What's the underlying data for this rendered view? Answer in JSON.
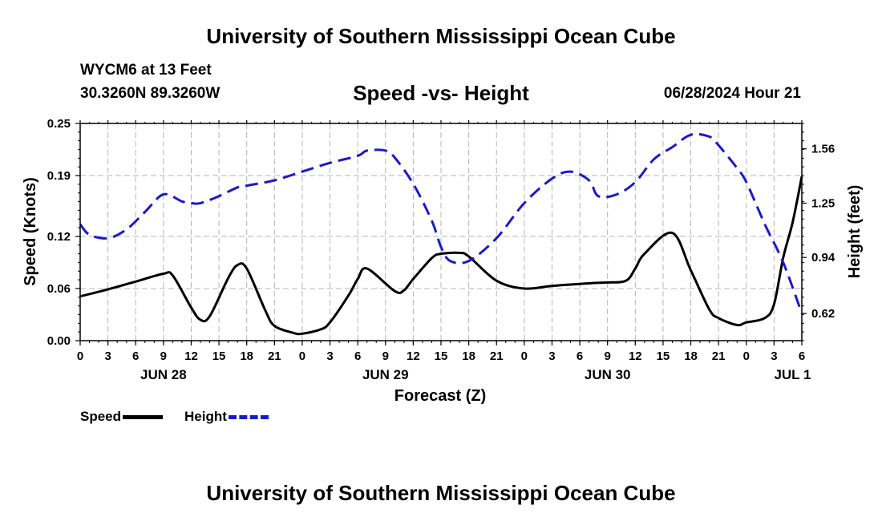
{
  "header": {
    "title": "University of Southern Mississippi Ocean Cube",
    "station": "WYCM6 at 13 Feet",
    "coords": "30.3260N  89.3260W",
    "subtitle": "Speed -vs- Height",
    "datetime": "06/28/2024 Hour 21",
    "footer_title": "University of Southern Mississippi Ocean Cube"
  },
  "legend": {
    "speed_label": "Speed",
    "height_label": "Height"
  },
  "colors": {
    "speed": "#000000",
    "height": "#1a1acc",
    "grid": "#b4b4b4"
  },
  "chart_data": {
    "type": "line",
    "title": "Speed -vs- Height",
    "xlabel": "Forecast (Z)",
    "ylabel": "Speed (Knots)",
    "y2label": "Height (feet)",
    "x_hours_range": [
      0,
      78
    ],
    "x_tick_labels": [
      "0",
      "3",
      "6",
      "9",
      "12",
      "15",
      "18",
      "21",
      "0",
      "3",
      "6",
      "9",
      "12",
      "15",
      "18",
      "21",
      "0",
      "3",
      "6",
      "9",
      "12",
      "15",
      "18",
      "21",
      "0",
      "3",
      "6"
    ],
    "x_date_labels": [
      {
        "hour": 9,
        "label": "JUN 28"
      },
      {
        "hour": 33,
        "label": "JUN 29"
      },
      {
        "hour": 57,
        "label": "JUN 30"
      },
      {
        "hour": 77,
        "label": "JUL 1"
      }
    ],
    "ylim": [
      0,
      0.25
    ],
    "y_ticks": [
      0.0,
      0.06,
      0.12,
      0.19,
      0.25
    ],
    "y_tick_labels": [
      "0.00",
      "0.06",
      "0.12",
      "0.19",
      "0.25"
    ],
    "y2lim": [
      0.465,
      1.705
    ],
    "y2_ticks": [
      0.62,
      0.94,
      1.25,
      1.56
    ],
    "y2_tick_labels": [
      "0.62",
      "0.94",
      "1.25",
      "1.56"
    ],
    "grid": true,
    "series": [
      {
        "name": "Speed",
        "axis": "left",
        "style": "solid",
        "x": [
          0,
          3,
          6,
          9,
          10,
          12,
          13,
          14,
          16,
          17,
          18,
          20,
          21,
          23,
          24,
          26,
          27,
          29,
          30,
          31,
          34,
          35,
          36,
          38,
          39,
          41,
          42,
          45,
          48,
          51,
          55,
          57,
          59,
          60,
          61,
          64,
          66,
          68,
          69,
          71,
          72,
          74,
          75,
          76,
          77,
          78
        ],
        "y": [
          0.051,
          0.059,
          0.068,
          0.077,
          0.075,
          0.038,
          0.024,
          0.028,
          0.072,
          0.087,
          0.083,
          0.035,
          0.017,
          0.009,
          0.008,
          0.013,
          0.021,
          0.052,
          0.071,
          0.083,
          0.057,
          0.058,
          0.071,
          0.095,
          0.1,
          0.101,
          0.097,
          0.069,
          0.06,
          0.063,
          0.066,
          0.067,
          0.069,
          0.083,
          0.1,
          0.124,
          0.081,
          0.036,
          0.026,
          0.018,
          0.021,
          0.026,
          0.042,
          0.096,
          0.136,
          0.189
        ]
      },
      {
        "name": "Height",
        "axis": "right",
        "style": "dashed",
        "x": [
          0,
          1,
          3,
          5,
          7,
          9,
          11,
          12,
          13,
          15,
          17,
          18,
          21,
          24,
          27,
          30,
          31,
          33,
          34,
          36,
          38,
          39,
          40,
          42,
          45,
          48,
          51,
          53,
          55,
          56,
          58,
          60,
          62,
          64,
          66,
          68,
          69,
          71,
          72,
          74,
          76,
          78
        ],
        "y": [
          1.13,
          1.07,
          1.05,
          1.1,
          1.2,
          1.3,
          1.26,
          1.25,
          1.25,
          1.29,
          1.34,
          1.35,
          1.38,
          1.43,
          1.48,
          1.52,
          1.55,
          1.55,
          1.51,
          1.36,
          1.15,
          1.0,
          0.92,
          0.92,
          1.05,
          1.25,
          1.39,
          1.43,
          1.38,
          1.29,
          1.3,
          1.37,
          1.5,
          1.57,
          1.64,
          1.63,
          1.58,
          1.45,
          1.37,
          1.13,
          0.91,
          0.62
        ]
      }
    ]
  },
  "chart_text": {
    "y_axis_title": "Speed (Knots)",
    "y2_axis_title": "Height (feet)",
    "x_axis_title": "Forecast (Z)"
  }
}
